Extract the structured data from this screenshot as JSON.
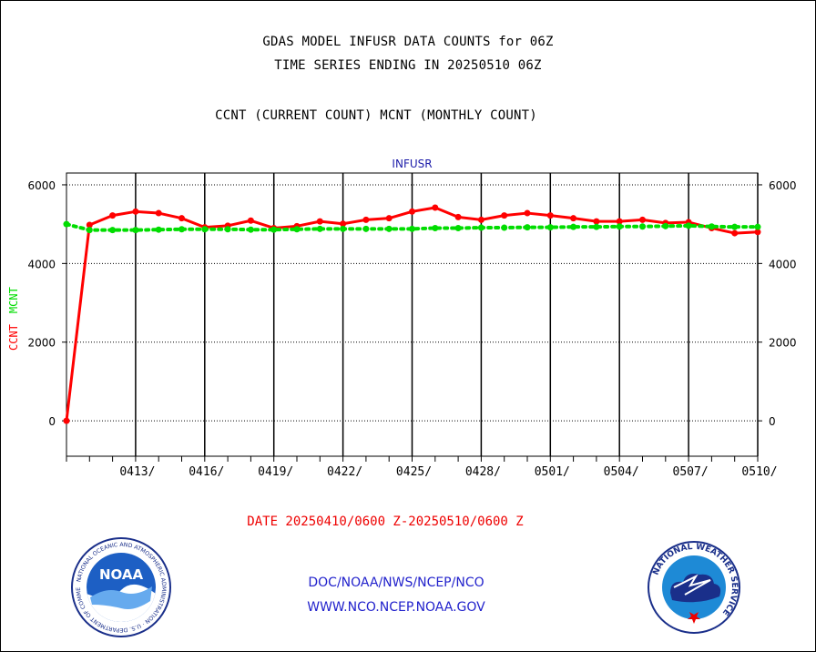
{
  "header": {
    "title_line1": "GDAS MODEL INFUSR DATA COUNTS for 06Z",
    "title_line2": "TIME SERIES ENDING IN 20250510 06Z",
    "subtitle": "CCNT (CURRENT COUNT) MCNT (MONTHLY COUNT)"
  },
  "footer": {
    "date_range": "DATE 20250410/0600 Z-20250510/0600 Z",
    "org_path": "DOC/NOAA/NWS/NCEP/NCO",
    "website": "WWW.NCO.NCEP.NOAA.GOV"
  },
  "logos": {
    "noaa_text": "NOAA",
    "noaa_ring": "NATIONAL OCEANIC AND ATMOSPHERIC ADMINISTRATION · U.S. DEPARTMENT OF COMMERCE",
    "nws_ring": "NATIONAL WEATHER SERVICE"
  },
  "chart_data": {
    "type": "line",
    "title": "INFUSR",
    "ylabel_parts": [
      {
        "text": "CCNT",
        "color": "#ff0000"
      },
      {
        "text": "MCNT",
        "color": "#00dd00"
      }
    ],
    "ylim": [
      -900,
      6300
    ],
    "yticks": [
      0,
      2000,
      4000,
      6000
    ],
    "grid": true,
    "x_day_range": [
      0,
      30
    ],
    "xticks": [
      {
        "day": 3,
        "label": "0413/"
      },
      {
        "day": 6,
        "label": "0416/"
      },
      {
        "day": 9,
        "label": "0419/"
      },
      {
        "day": 12,
        "label": "0422/"
      },
      {
        "day": 15,
        "label": "0425/"
      },
      {
        "day": 18,
        "label": "0428/"
      },
      {
        "day": 21,
        "label": "0501/"
      },
      {
        "day": 24,
        "label": "0504/"
      },
      {
        "day": 27,
        "label": "0507/"
      },
      {
        "day": 30,
        "label": "0510/"
      }
    ],
    "series": [
      {
        "name": "CCNT",
        "color": "#ff0000",
        "style": "solid",
        "days": [
          0,
          1,
          2,
          3,
          4,
          5,
          6,
          7,
          8,
          9,
          10,
          11,
          12,
          13,
          14,
          15,
          16,
          17,
          18,
          19,
          20,
          21,
          22,
          23,
          24,
          25,
          26,
          27,
          28,
          29,
          30
        ],
        "values": [
          0,
          4980,
          5220,
          5320,
          5280,
          5150,
          4920,
          4960,
          5090,
          4900,
          4950,
          5070,
          5010,
          5110,
          5150,
          5320,
          5420,
          5180,
          5110,
          5220,
          5280,
          5220,
          5150,
          5070,
          5070,
          5110,
          5030,
          5050,
          4900,
          4770,
          4800
        ]
      },
      {
        "name": "MCNT",
        "color": "#00dd00",
        "style": "dashed",
        "days": [
          0,
          1,
          2,
          3,
          4,
          5,
          6,
          7,
          8,
          9,
          10,
          11,
          12,
          13,
          14,
          15,
          16,
          17,
          18,
          19,
          20,
          21,
          22,
          23,
          24,
          25,
          26,
          27,
          28,
          29,
          30
        ],
        "values": [
          5000,
          4850,
          4850,
          4850,
          4860,
          4870,
          4870,
          4870,
          4860,
          4860,
          4870,
          4880,
          4880,
          4880,
          4880,
          4880,
          4900,
          4900,
          4910,
          4910,
          4920,
          4920,
          4930,
          4930,
          4940,
          4940,
          4950,
          4960,
          4940,
          4930,
          4930
        ]
      }
    ]
  }
}
